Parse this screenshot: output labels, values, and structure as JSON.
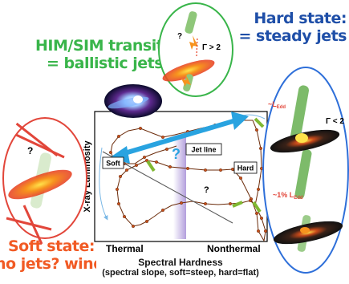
{
  "titles": {
    "transition_line1": "HIM/SIM transition",
    "transition_line2": "= ballistic jets",
    "hard_line1": "Hard state:",
    "hard_line2": "= steady jets",
    "soft_line1": "Soft state:",
    "soft_line2": "no jets? winds"
  },
  "axes": {
    "ylabel": "X-ray Luminosity",
    "xlabel_line1": "Spectral Hardness",
    "xlabel_line2": "(spectral slope, soft=steep, hard=flat)",
    "left_end": "Thermal",
    "right_end": "Nonthermal"
  },
  "boxes": {
    "soft": "Soft",
    "jet_line": "Jet line",
    "hard": "Hard"
  },
  "annotations": {
    "gamma_top": "Γ > 2",
    "gamma_right": "Γ < 2",
    "question": "?",
    "l_edd_main": "~L",
    "l_edd_sub": "Edd",
    "one_pct_main": "~1% L",
    "one_pct_sub": "Edd"
  },
  "colors": {
    "green": "#39b54a",
    "blue": "#1f4fa8",
    "orange": "#f15a24",
    "red_circle": "#e2463a",
    "cyan_arrow": "#29a3e0",
    "track": "#8a3b12"
  }
}
